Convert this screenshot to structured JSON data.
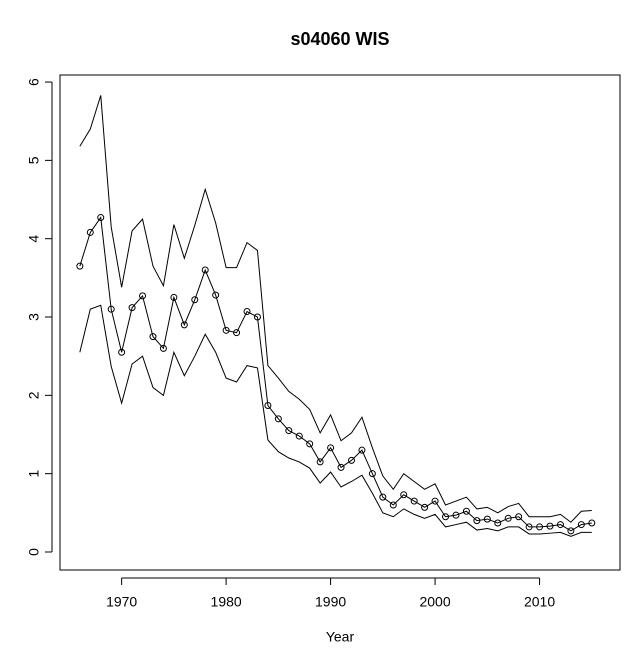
{
  "chart_data": {
    "type": "line",
    "title": "s04060 WIS",
    "x_label": "Year",
    "x": [
      1966,
      1967,
      1968,
      1969,
      1970,
      1971,
      1972,
      1973,
      1974,
      1975,
      1976,
      1977,
      1978,
      1979,
      1980,
      1981,
      1982,
      1983,
      1984,
      1985,
      1986,
      1987,
      1988,
      1989,
      1990,
      1991,
      1992,
      1993,
      1994,
      1995,
      1996,
      1997,
      1998,
      1999,
      2000,
      2001,
      2002,
      2003,
      2004,
      2005,
      2006,
      2007,
      2008,
      2009,
      2010,
      2011,
      2012,
      2013,
      2014,
      2015
    ],
    "series": [
      {
        "color": "#000000",
        "values": [
          5.18,
          5.4,
          5.83,
          4.15,
          3.38,
          4.1,
          4.25,
          3.65,
          3.4,
          4.18,
          3.75,
          4.17,
          4.63,
          4.2,
          3.63,
          3.63,
          3.95,
          3.85,
          2.38,
          2.22,
          2.05,
          1.95,
          1.82,
          1.52,
          1.75,
          1.42,
          1.52,
          1.72,
          1.33,
          0.97,
          0.8,
          1.0,
          0.9,
          0.8,
          0.87,
          0.6,
          0.65,
          0.7,
          0.55,
          0.57,
          0.5,
          0.58,
          0.62,
          0.45,
          0.45,
          0.45,
          0.48,
          0.38,
          0.52,
          0.53
        ]
      },
      {
        "color": "#000000",
        "marker": "circle",
        "values": [
          3.65,
          4.08,
          4.27,
          3.1,
          2.55,
          3.12,
          3.27,
          2.75,
          2.6,
          3.25,
          2.9,
          3.22,
          3.6,
          3.28,
          2.83,
          2.8,
          3.07,
          3.0,
          1.87,
          1.7,
          1.55,
          1.48,
          1.38,
          1.15,
          1.33,
          1.08,
          1.17,
          1.3,
          1.0,
          0.7,
          0.6,
          0.73,
          0.65,
          0.57,
          0.65,
          0.45,
          0.47,
          0.52,
          0.4,
          0.42,
          0.37,
          0.43,
          0.45,
          0.32,
          0.32,
          0.33,
          0.35,
          0.27,
          0.35,
          0.37
        ]
      },
      {
        "color": "#000000",
        "values": [
          2.55,
          3.1,
          3.15,
          2.37,
          1.9,
          2.4,
          2.5,
          2.1,
          2.0,
          2.55,
          2.25,
          2.5,
          2.78,
          2.55,
          2.22,
          2.17,
          2.38,
          2.35,
          1.43,
          1.28,
          1.2,
          1.15,
          1.07,
          0.88,
          1.02,
          0.83,
          0.9,
          0.98,
          0.75,
          0.5,
          0.45,
          0.55,
          0.48,
          0.43,
          0.48,
          0.32,
          0.35,
          0.38,
          0.28,
          0.3,
          0.27,
          0.32,
          0.32,
          0.23,
          0.23,
          0.24,
          0.25,
          0.2,
          0.25,
          0.25
        ]
      }
    ],
    "xlim": [
      1964.1,
      2017.7
    ],
    "xticks": [
      1970,
      1980,
      1990,
      2000,
      2010
    ],
    "ylim": [
      -0.23,
      6.09
    ],
    "yticks": [
      0,
      1,
      2,
      3,
      4,
      5,
      6
    ]
  }
}
